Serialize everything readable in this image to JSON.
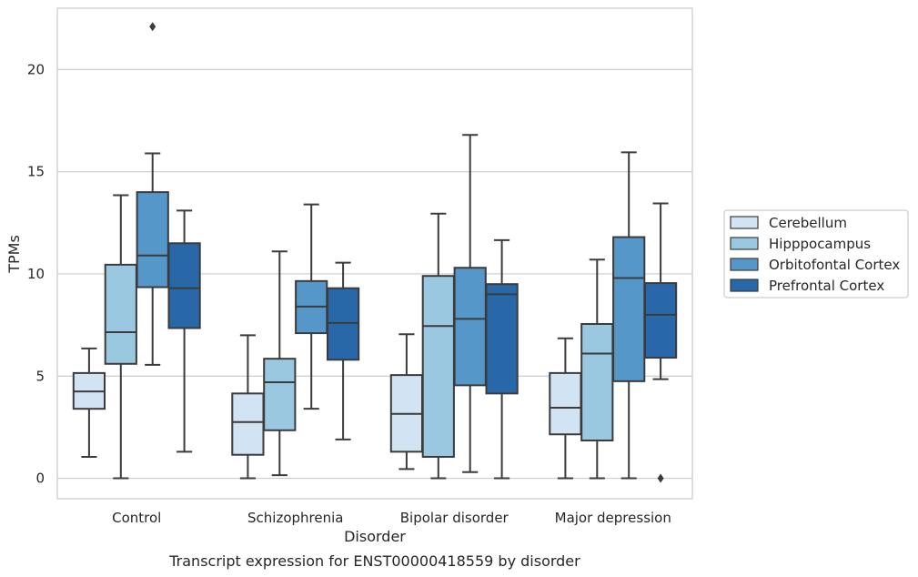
{
  "chart_data": {
    "type": "boxplot",
    "title": "",
    "caption": "Transcript expression for ENST00000418559 by disorder",
    "xlabel": "Disorder",
    "ylabel": "TPMs",
    "ylim": [
      -1,
      23
    ],
    "yticks": [
      0,
      5,
      10,
      15,
      20
    ],
    "ytick_labels": [
      "0",
      "5",
      "10",
      "15",
      "20"
    ],
    "grid": "horizontal",
    "legend_position": "right",
    "categories": [
      "Control",
      "Schizophrenia",
      "Bipolar disorder",
      "Major depression"
    ],
    "series": [
      {
        "name": "Cerebellum",
        "color": "#d2e3f3",
        "boxes": [
          {
            "whislo": 1.05,
            "q1": 3.4,
            "med": 4.25,
            "q3": 5.15,
            "whishi": 6.35,
            "fliers": []
          },
          {
            "whislo": 0.0,
            "q1": 1.15,
            "med": 2.75,
            "q3": 4.15,
            "whishi": 7.0,
            "fliers": []
          },
          {
            "whislo": 0.45,
            "q1": 1.3,
            "med": 3.15,
            "q3": 5.05,
            "whishi": 7.05,
            "fliers": []
          },
          {
            "whislo": 0.0,
            "q1": 2.15,
            "med": 3.45,
            "q3": 5.15,
            "whishi": 6.85,
            "fliers": []
          }
        ]
      },
      {
        "name": "Hipppocampus",
        "color": "#9ac8e0",
        "boxes": [
          {
            "whislo": 0.0,
            "q1": 5.6,
            "med": 7.15,
            "q3": 10.45,
            "whishi": 13.85,
            "fliers": []
          },
          {
            "whislo": 0.15,
            "q1": 2.35,
            "med": 4.7,
            "q3": 5.85,
            "whishi": 11.1,
            "fliers": []
          },
          {
            "whislo": 0.0,
            "q1": 1.05,
            "med": 7.45,
            "q3": 9.9,
            "whishi": 12.95,
            "fliers": []
          },
          {
            "whislo": 0.0,
            "q1": 1.85,
            "med": 6.1,
            "q3": 7.55,
            "whishi": 10.7,
            "fliers": []
          }
        ]
      },
      {
        "name": "Orbitofontal Cortex",
        "color": "#5597c9",
        "boxes": [
          {
            "whislo": 5.55,
            "q1": 9.35,
            "med": 10.9,
            "q3": 14.0,
            "whishi": 15.9,
            "fliers": [
              22.1
            ]
          },
          {
            "whislo": 3.4,
            "q1": 7.1,
            "med": 8.4,
            "q3": 9.65,
            "whishi": 13.4,
            "fliers": []
          },
          {
            "whislo": 0.3,
            "q1": 4.55,
            "med": 7.8,
            "q3": 10.3,
            "whishi": 16.8,
            "fliers": []
          },
          {
            "whislo": 0.0,
            "q1": 4.75,
            "med": 9.8,
            "q3": 11.8,
            "whishi": 15.95,
            "fliers": []
          }
        ]
      },
      {
        "name": "Prefrontal Cortex",
        "color": "#2868a9",
        "boxes": [
          {
            "whislo": 1.3,
            "q1": 7.35,
            "med": 9.3,
            "q3": 11.5,
            "whishi": 13.1,
            "fliers": []
          },
          {
            "whislo": 1.9,
            "q1": 5.8,
            "med": 7.6,
            "q3": 9.3,
            "whishi": 10.55,
            "fliers": []
          },
          {
            "whislo": 0.0,
            "q1": 4.15,
            "med": 9.0,
            "q3": 9.5,
            "whishi": 11.65,
            "fliers": []
          },
          {
            "whislo": 4.85,
            "q1": 5.9,
            "med": 8.0,
            "q3": 9.55,
            "whishi": 13.45,
            "fliers": [
              0.0
            ]
          }
        ]
      }
    ]
  }
}
